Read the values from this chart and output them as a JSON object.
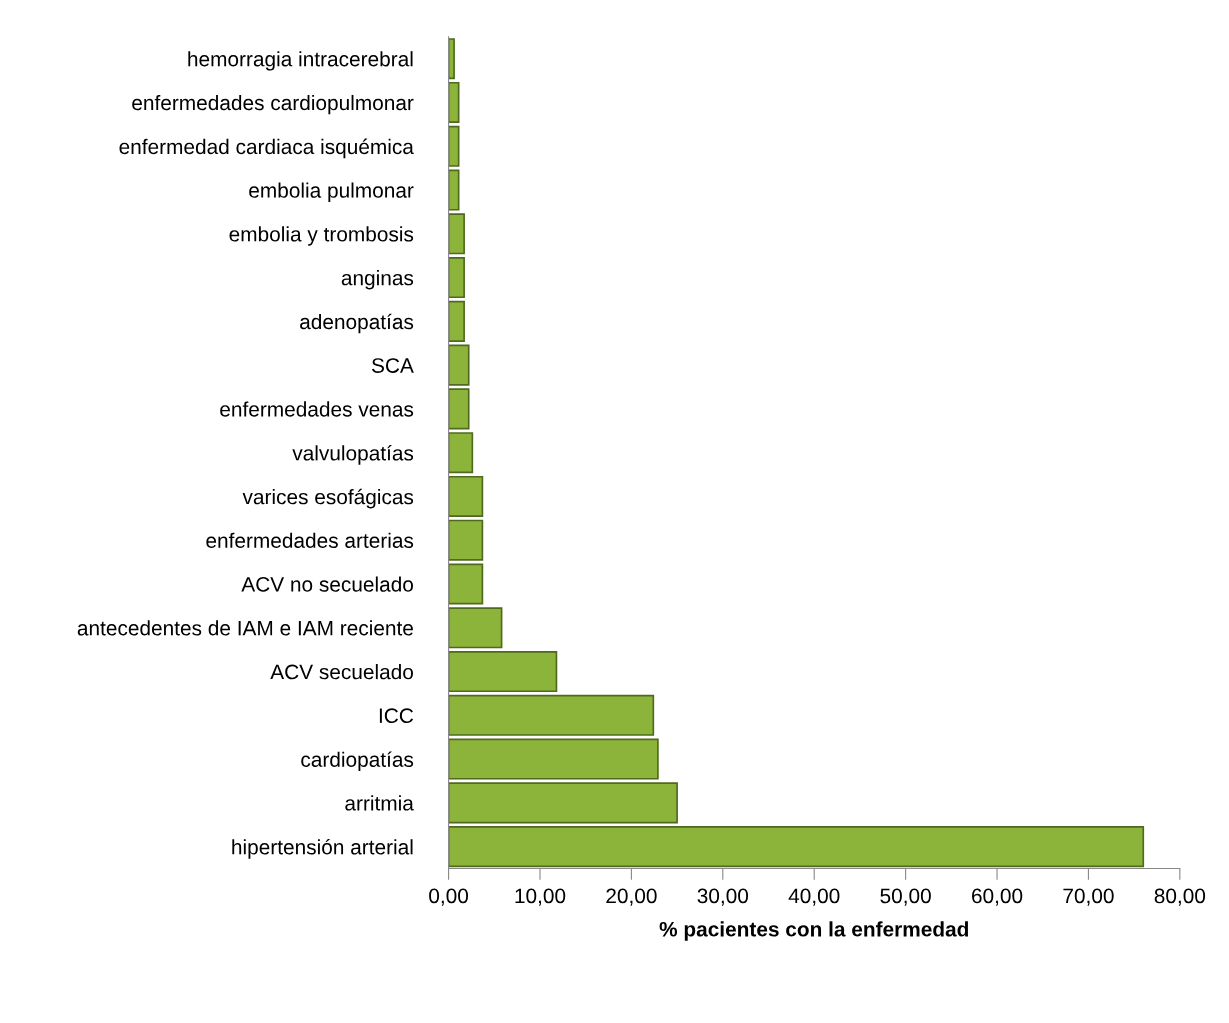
{
  "chart_data": {
    "type": "bar",
    "orientation": "horizontal",
    "xlabel": "% pacientes con la enfermedad",
    "categories": [
      "hemorragia intracerebral",
      "enfermedades cardiopulmonar",
      "enfermedad cardiaca isquémica",
      "embolia pulmonar",
      "embolia y trombosis",
      "anginas",
      "adenopatías",
      "SCA",
      "enfermedades venas",
      "valvulopatías",
      "varices esofágicas",
      "enfermedades arterias",
      "ACV no secuelado",
      "antecedentes de IAM e IAM reciente",
      "ACV secuelado",
      "ICC",
      "cardiopatías",
      "arritmia",
      "hipertensión arterial"
    ],
    "values": [
      0.6,
      1.1,
      1.1,
      1.1,
      1.7,
      1.7,
      1.7,
      2.2,
      2.2,
      2.6,
      3.7,
      3.7,
      3.7,
      5.8,
      11.8,
      22.4,
      22.9,
      25.0,
      76.0
    ],
    "color": "#8db43a",
    "xlim": [
      0,
      80
    ],
    "xticks": [
      {
        "value": 0,
        "label": "0,00"
      },
      {
        "value": 10,
        "label": "10,00"
      },
      {
        "value": 20,
        "label": "20,00"
      },
      {
        "value": 30,
        "label": "30,00"
      },
      {
        "value": 40,
        "label": "40,00"
      },
      {
        "value": 50,
        "label": "50,00"
      },
      {
        "value": 60,
        "label": "60,00"
      },
      {
        "value": 70,
        "label": "70,00"
      },
      {
        "value": 80,
        "label": "80,00"
      }
    ],
    "grid": false,
    "legend": false
  }
}
